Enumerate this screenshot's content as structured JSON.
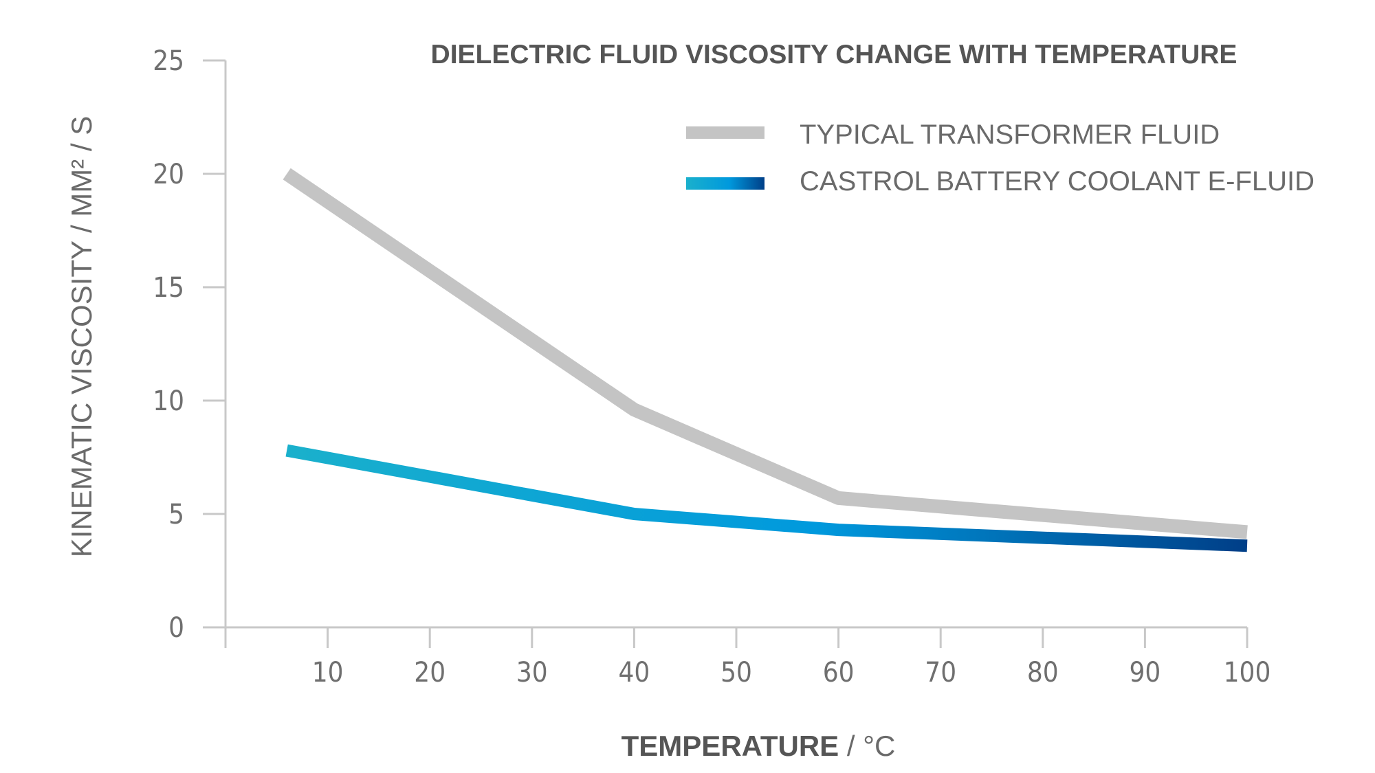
{
  "chart_data": {
    "type": "line",
    "title": "DIELECTRIC FLUID VISCOSITY CHANGE WITH TEMPERATURE",
    "xlabel_bold": "TEMPERATURE",
    "xlabel_rest": " / °C",
    "ylabel": "KINEMATIC VISCOSITY / MM² / S",
    "xlim": [
      0,
      100
    ],
    "ylim": [
      0,
      25
    ],
    "x_ticks": [
      10,
      20,
      30,
      40,
      50,
      60,
      70,
      80,
      90,
      100
    ],
    "y_ticks": [
      0,
      5,
      10,
      15,
      20,
      25
    ],
    "grid": false,
    "legend_position": "top-right",
    "series": [
      {
        "name": "TYPICAL TRANSFORMER FLUID",
        "color": "#c4c4c4",
        "x": [
          6,
          40,
          60,
          100
        ],
        "y": [
          20,
          9.6,
          5.7,
          4.2
        ]
      },
      {
        "name": "CASTROL BATTERY COOLANT E-FLUID",
        "color_start": "#1ab0cc",
        "color_mid": "#0099dd",
        "color_end": "#003f88",
        "x": [
          6,
          40,
          60,
          100
        ],
        "y": [
          7.8,
          5.0,
          4.3,
          3.6
        ]
      }
    ]
  }
}
